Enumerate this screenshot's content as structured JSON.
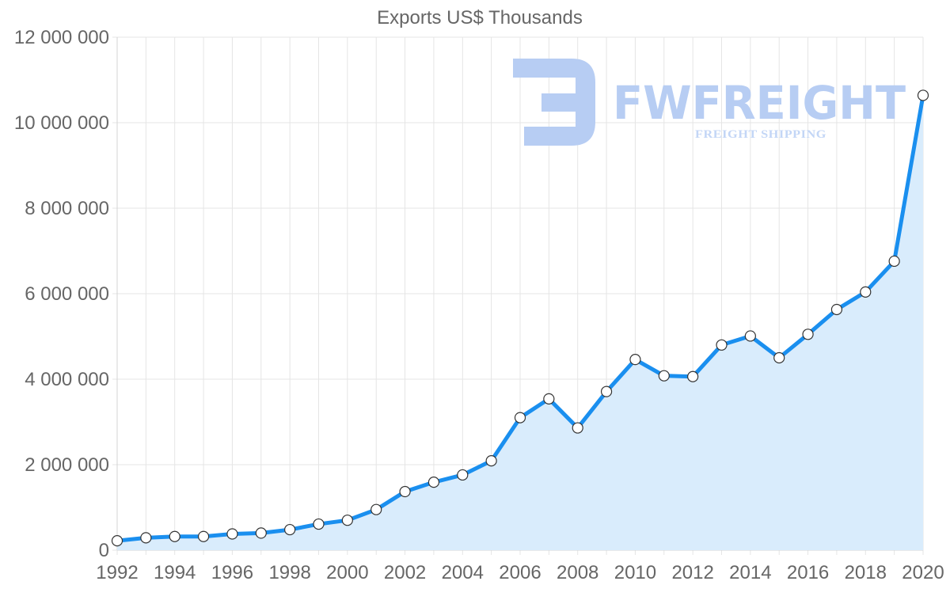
{
  "watermark": {
    "brand": "FWFREIGHT",
    "tagline": "FREIGHT SHIPPING",
    "color": "#b7cdf3"
  },
  "chart_data": {
    "type": "area",
    "title": "Exports US$ Thousands",
    "xlabel": "",
    "ylabel": "",
    "x": [
      1992,
      1993,
      1994,
      1995,
      1996,
      1997,
      1998,
      1999,
      2000,
      2001,
      2002,
      2003,
      2004,
      2005,
      2006,
      2007,
      2008,
      2009,
      2010,
      2011,
      2012,
      2013,
      2014,
      2015,
      2016,
      2017,
      2018,
      2019,
      2020
    ],
    "series": [
      {
        "name": "Exports US$ Thousands",
        "values": [
          220000,
          290000,
          320000,
          320000,
          380000,
          400000,
          480000,
          610000,
          700000,
          950000,
          1370000,
          1590000,
          1760000,
          2090000,
          3100000,
          3540000,
          2860000,
          3710000,
          4460000,
          4080000,
          4060000,
          4800000,
          5010000,
          4500000,
          5050000,
          5630000,
          6040000,
          6760000,
          10640000
        ],
        "line_color": "#1a8fef",
        "fill_color": "#d9ecfc"
      }
    ],
    "ylim": [
      0,
      12000000
    ],
    "yticks": [
      0,
      2000000,
      4000000,
      6000000,
      8000000,
      10000000,
      12000000
    ],
    "ytick_labels": [
      "0",
      "2 000 000",
      "4 000 000",
      "6 000 000",
      "8 000 000",
      "10 000 000",
      "12 000 000"
    ],
    "xticks": [
      1992,
      1994,
      1996,
      1998,
      2000,
      2002,
      2004,
      2006,
      2008,
      2010,
      2012,
      2014,
      2016,
      2018,
      2020
    ],
    "xtick_labels": [
      "1992",
      "1994",
      "1996",
      "1998",
      "2000",
      "2002",
      "2004",
      "2006",
      "2008",
      "2010",
      "2012",
      "2014",
      "2016",
      "2018",
      "2020"
    ],
    "grid": true,
    "legend": "none"
  }
}
